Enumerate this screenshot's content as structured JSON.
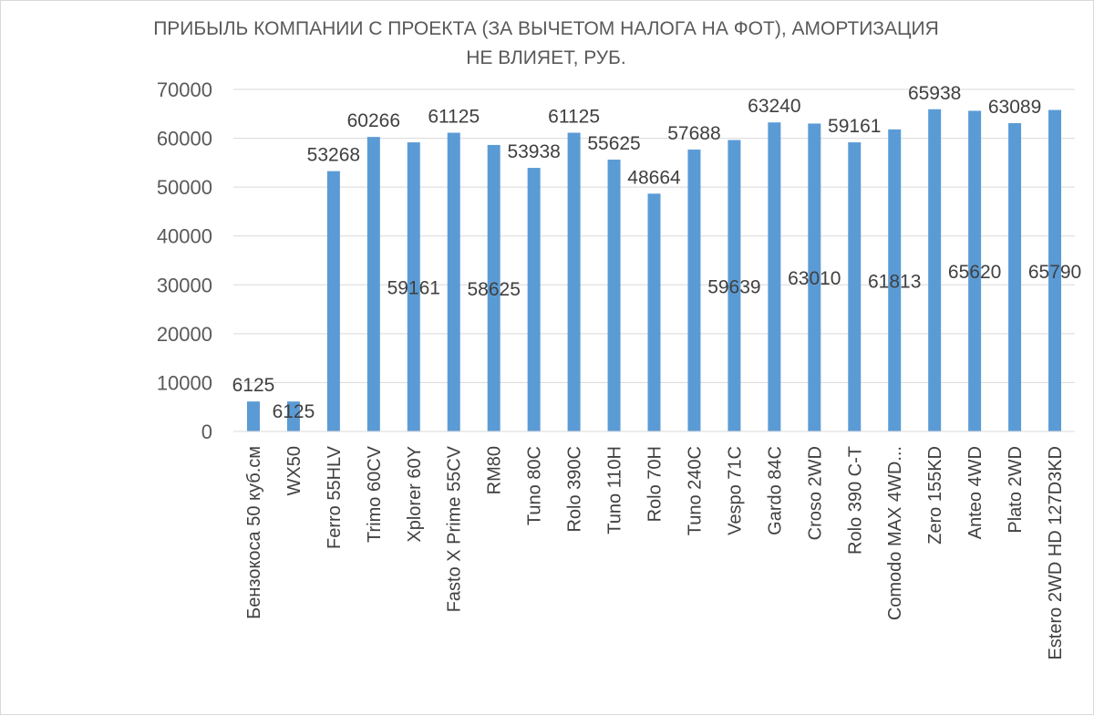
{
  "chart_data": {
    "type": "bar",
    "title_lines": [
      "ПРИБЫЛЬ КОМПАНИИ С ПРОЕКТА (ЗА ВЫЧЕТОМ НАЛОГА НА ФОТ), АМОРТИЗАЦИЯ",
      "НЕ ВЛИЯЕТ, РУБ."
    ],
    "categories": [
      "Бензокоса 50 куб.см",
      "WX50",
      "Ferro 55HLV",
      "Trimo 60CV",
      "Xplorer 60Y",
      "Fasto X Prime 55CV",
      "RM80",
      "Tuno 80C",
      "Rolo 390C",
      "Tuno 110H",
      "Rolo 70H",
      "Tuno 240C",
      "Vespo 71C",
      "Gardo 84C",
      "Croso 2WD",
      "Rolo 390 C-T",
      "Comodo MAX 4WD...",
      "Zero 155KD",
      "Anteo 4WD",
      "Plato 2WD",
      "Estero 2WD HD 127D3KD"
    ],
    "values": [
      6125,
      6125,
      53268,
      60266,
      59161,
      61125,
      58625,
      53938,
      61125,
      55625,
      48664,
      57688,
      59639,
      63240,
      63010,
      59161,
      61813,
      65938,
      65620,
      63089,
      65790
    ],
    "data_labels": [
      "6125",
      "6125",
      "53268",
      "60266",
      "59161",
      "61125",
      "58625",
      "53938",
      "61125",
      "55625",
      "48664",
      "57688",
      "59639",
      "63240",
      "63010",
      "59161",
      "61813",
      "65938",
      "65620",
      "63089",
      "65790"
    ],
    "label_position": [
      "end",
      "inside",
      "end",
      "end",
      "middle",
      "end",
      "middle",
      "end",
      "end",
      "end",
      "end",
      "end",
      "middle",
      "end",
      "middle",
      "end",
      "middle",
      "end",
      "middle",
      "end",
      "middle"
    ],
    "yticks": [
      "0",
      "10000",
      "20000",
      "30000",
      "40000",
      "50000",
      "60000",
      "70000"
    ],
    "ylim": [
      0,
      70000
    ],
    "xlabel": "",
    "ylabel": "",
    "grid": true,
    "legend": "none",
    "colors": {
      "bar": "#5b9bd5",
      "grid": "#d9d9d9",
      "text": "#595959"
    }
  }
}
